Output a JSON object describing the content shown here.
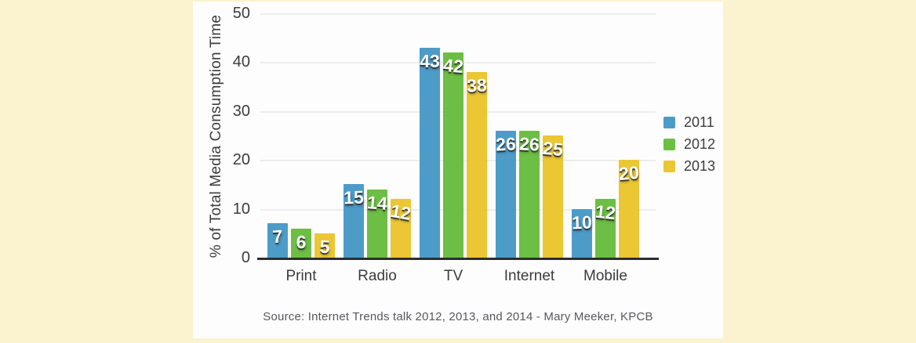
{
  "colors": {
    "page_bg": "#FBF3CF",
    "panel_bg": "#FDFDFE",
    "grid": "#ECECEA",
    "axis": "#2D2D2D",
    "text": "#3C3C3C",
    "bar_label": "#FFFFFF",
    "source_text": "#58595B"
  },
  "chart_data": {
    "type": "bar",
    "title": "",
    "xlabel": "",
    "ylabel": "% of Total Media Consumption Time",
    "categories": [
      "Print",
      "Radio",
      "TV",
      "Internet",
      "Mobile"
    ],
    "series": [
      {
        "name": "2011",
        "color": "#4D9CC8",
        "values": [
          7,
          15,
          43,
          26,
          10
        ]
      },
      {
        "name": "2012",
        "color": "#6CBE44",
        "values": [
          6,
          14,
          42,
          26,
          12
        ]
      },
      {
        "name": "2013",
        "color": "#EAC733",
        "values": [
          5,
          12,
          38,
          25,
          20
        ]
      }
    ],
    "ylim": [
      0,
      50
    ],
    "yticks": [
      0,
      10,
      20,
      30,
      40,
      50
    ],
    "grid": true,
    "legend_position": "right",
    "source": "Source: Internet Trends talk 2012, 2013, and 2014 - Mary Meeker, KPCB"
  }
}
